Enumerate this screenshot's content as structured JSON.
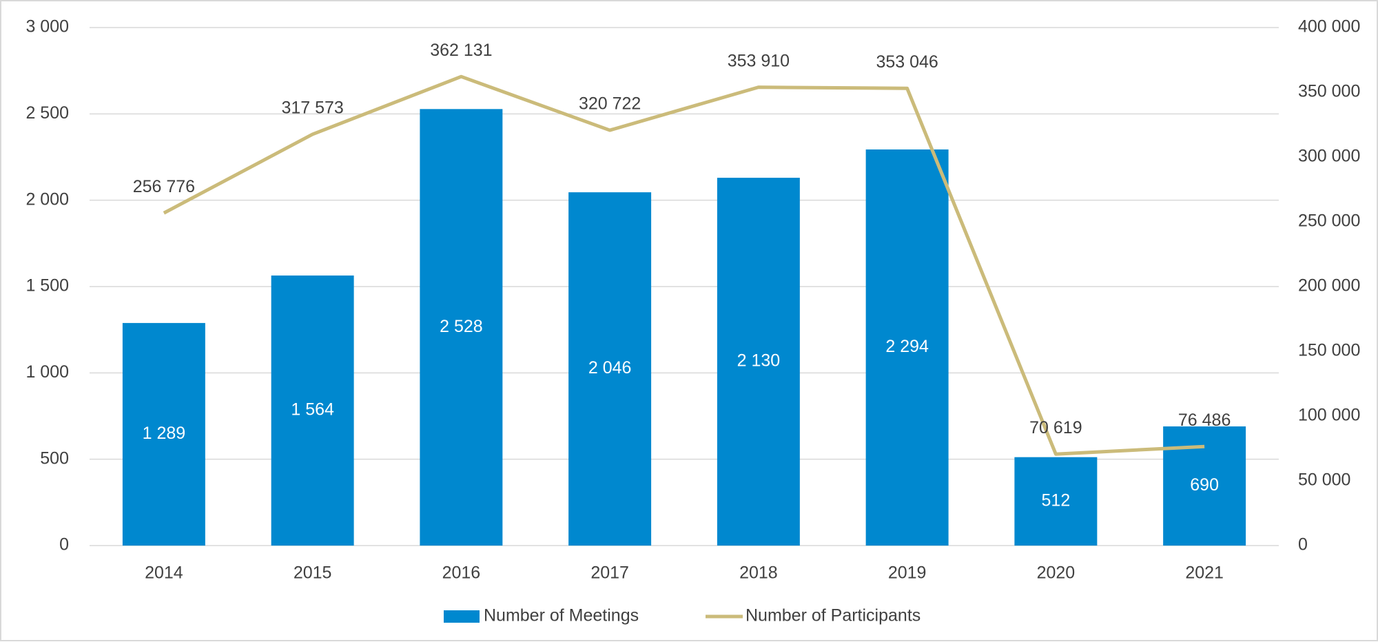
{
  "chart_data": {
    "type": "bar_line",
    "categories": [
      "2014",
      "2015",
      "2016",
      "2017",
      "2018",
      "2019",
      "2020",
      "2021"
    ],
    "series": [
      {
        "name": "Number of Meetings",
        "color": "#0088cf",
        "type": "bar",
        "values": [
          1289,
          1564,
          2528,
          2046,
          2130,
          2294,
          512,
          690
        ],
        "value_labels": [
          "1 289",
          "1 564",
          "2 528",
          "2 046",
          "2 130",
          "2 294",
          "512",
          "690"
        ]
      },
      {
        "name": "Number of Participants",
        "color": "#cbbb7a",
        "type": "line",
        "axis": "y2",
        "values": [
          256776,
          317573,
          362131,
          320722,
          353910,
          353046,
          70619,
          76486
        ],
        "value_labels": [
          "256 776",
          "317 573",
          "362 131",
          "320 722",
          "353 910",
          "353 046",
          "70 619",
          "76 486"
        ]
      }
    ],
    "ylim": [
      0,
      3000
    ],
    "yticks": [
      0,
      500,
      {
        "value": 1000,
        "label": "1 000"
      },
      {
        "value": 1500,
        "label": "1 500"
      },
      {
        "value": 2000,
        "label": "2 000"
      },
      {
        "value": 2500,
        "label": "2 500"
      },
      {
        "value": 3000,
        "label": "3 000"
      }
    ],
    "y2lim": [
      0,
      400000
    ],
    "y2ticks": [
      0,
      {
        "value": 50000,
        "label": "50 000"
      },
      {
        "value": 100000,
        "label": "100 000"
      },
      {
        "value": 150000,
        "label": "150 000"
      },
      {
        "value": 200000,
        "label": "200 000"
      },
      {
        "value": 250000,
        "label": "250 000"
      },
      {
        "value": 300000,
        "label": "300 000"
      },
      {
        "value": 350000,
        "label": "350 000"
      },
      {
        "value": 400000,
        "label": "400 000"
      }
    ],
    "grid": true,
    "legend": "bottom"
  }
}
